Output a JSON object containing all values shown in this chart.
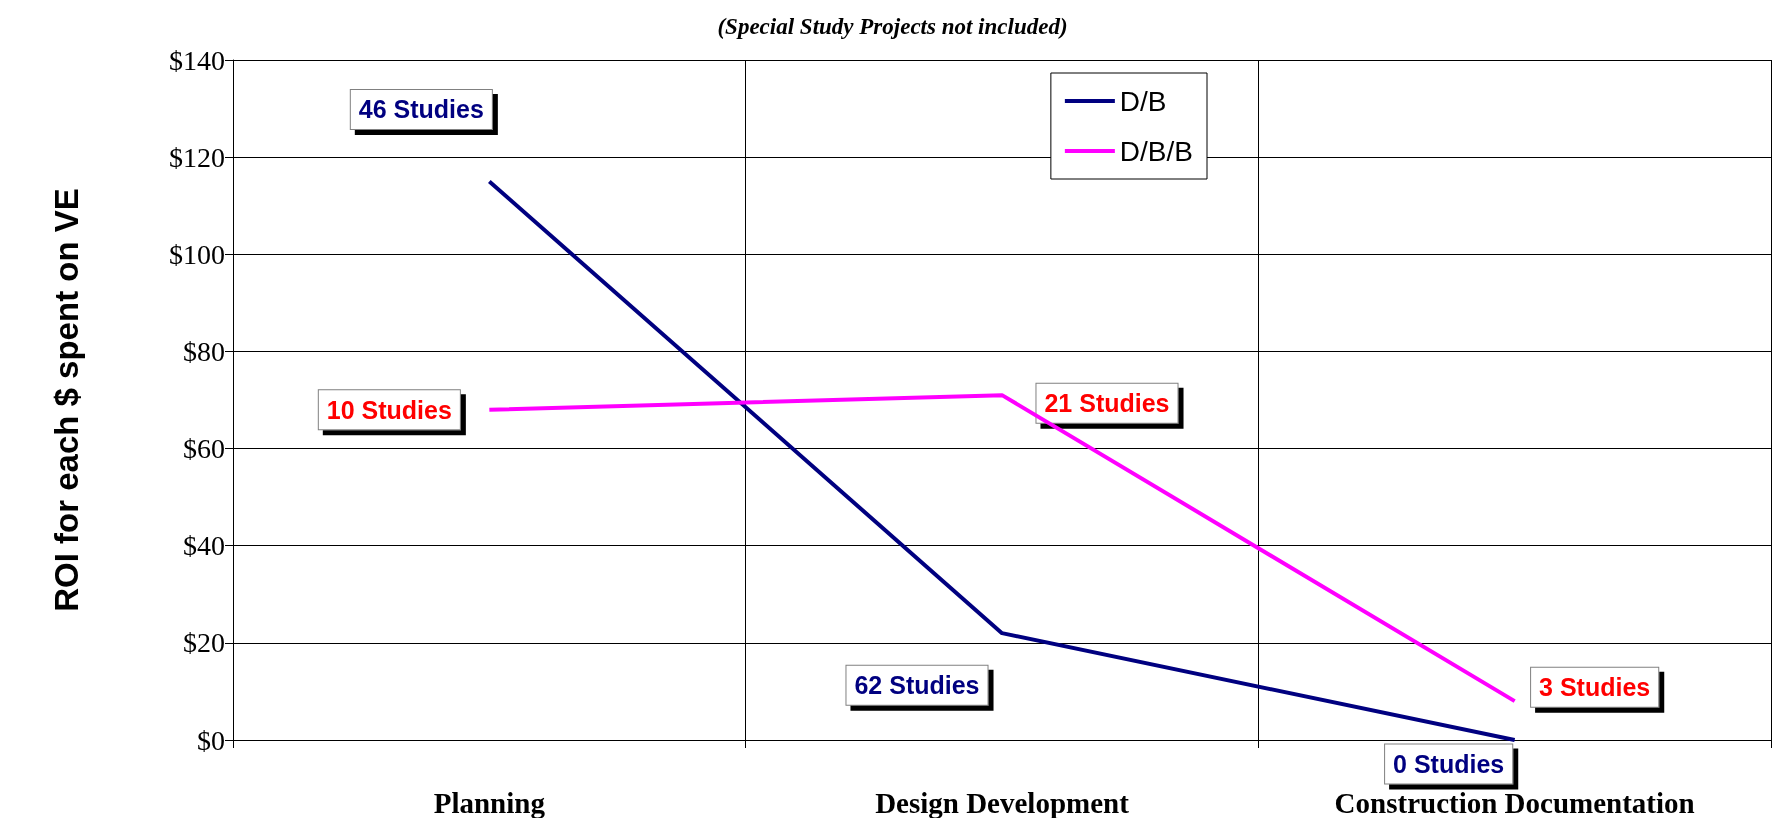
{
  "chart_data": {
    "type": "line",
    "subtitle": "(Special Study Projects not included)",
    "ylabel": "ROI for each $ spent on VE",
    "categories": [
      "Planning",
      "Design Development",
      "Construction Documentation"
    ],
    "series": [
      {
        "name": "D/B",
        "color": "#000080",
        "values": [
          115,
          22,
          0
        ]
      },
      {
        "name": "D/B/B",
        "color": "#ff00ff",
        "values": [
          68,
          71,
          8
        ]
      }
    ],
    "annotations": [
      {
        "text": "46 Studies",
        "x": "Planning",
        "y": 115
      },
      {
        "text": "62 Studies",
        "x": "Design Development",
        "y": 22
      },
      {
        "text": "0 Studies",
        "x": "Construction Documentation",
        "y": 0
      },
      {
        "text": "10 Studies",
        "x": "Planning",
        "y": 68
      },
      {
        "text": "21 Studies",
        "x": "Design Development",
        "y": 71
      },
      {
        "text": "3 Studies",
        "x": "Construction Documentation",
        "y": 8
      }
    ],
    "ylim": [
      0,
      140
    ],
    "yticks": [
      {
        "value": 0,
        "label": "$0"
      },
      {
        "value": 20,
        "label": "$20"
      },
      {
        "value": 40,
        "label": "$40"
      },
      {
        "value": 60,
        "label": "$60"
      },
      {
        "value": 80,
        "label": "$80"
      },
      {
        "value": 100,
        "label": "$100"
      },
      {
        "value": 120,
        "label": "$120"
      },
      {
        "value": 140,
        "label": "$140"
      }
    ],
    "grid": true,
    "legend": "top right",
    "marker": "none",
    "line_style": "solid"
  }
}
